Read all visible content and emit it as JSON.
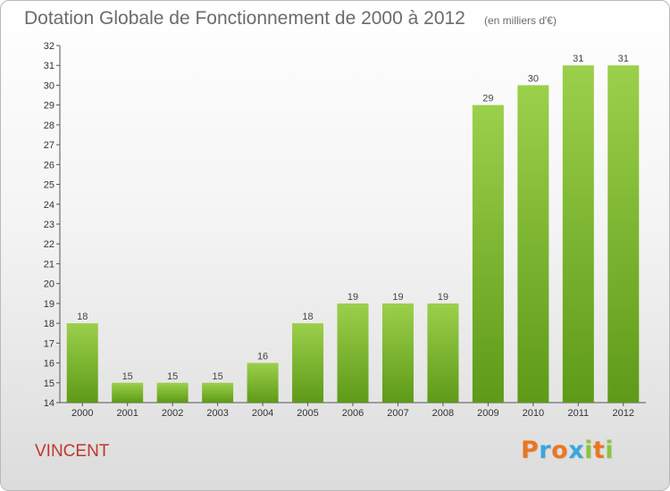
{
  "chart_data": {
    "type": "bar",
    "title": "Dotation Globale de Fonctionnement de 2000 à 2012",
    "unit_note": "(en milliers d'€)",
    "categories": [
      "2000",
      "2001",
      "2002",
      "2003",
      "2004",
      "2005",
      "2006",
      "2007",
      "2008",
      "2009",
      "2010",
      "2011",
      "2012"
    ],
    "values": [
      18,
      15,
      15,
      15,
      16,
      18,
      19,
      19,
      19,
      29,
      30,
      31,
      31
    ],
    "ylim": [
      14,
      32
    ],
    "yticks": [
      14,
      15,
      16,
      17,
      18,
      19,
      20,
      21,
      22,
      23,
      24,
      25,
      26,
      27,
      28,
      29,
      30,
      31,
      32
    ],
    "grid": false,
    "bar_color": "#7ab82e"
  },
  "commune": "VINCENT",
  "logo": {
    "text": "Proxiti",
    "letters": [
      {
        "ch": "P",
        "color": "#e87722"
      },
      {
        "ch": "r",
        "color": "#3aa7dc"
      },
      {
        "ch": "o",
        "color": "#e87722"
      },
      {
        "ch": "x",
        "color": "#3aa7dc"
      },
      {
        "ch": "i",
        "color": "#8bc53f"
      },
      {
        "ch": "t",
        "color": "#e87722"
      },
      {
        "ch": "i",
        "color": "#8bc53f"
      }
    ]
  }
}
